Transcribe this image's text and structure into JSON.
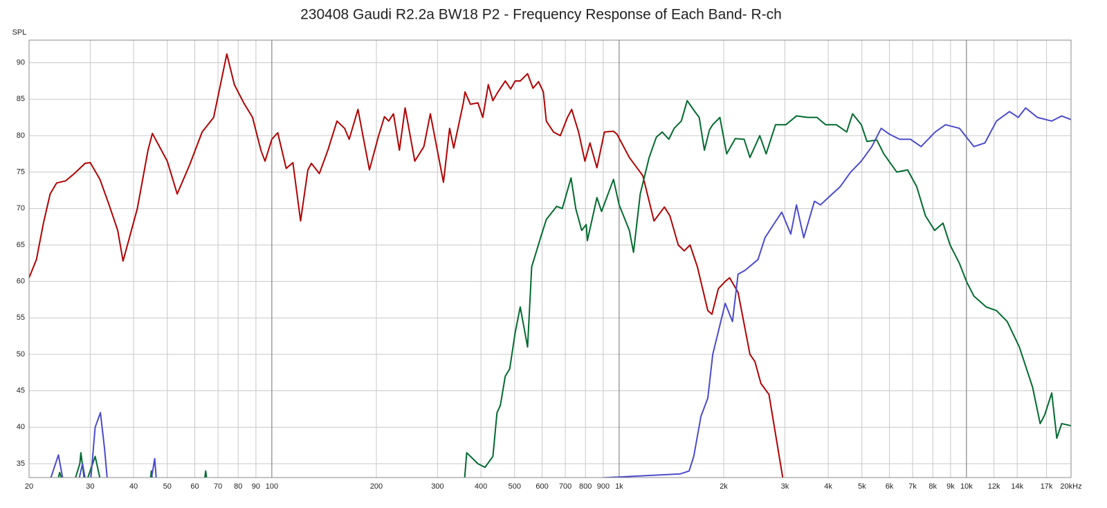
{
  "chart_data": {
    "type": "line",
    "title": "230408 Gaudi R2.2a BW18 P2 - Frequency Response of Each Band- R-ch",
    "y_label": "SPL",
    "xscale": "log",
    "grid": true,
    "xlim": [
      20,
      20000
    ],
    "ylim": [
      33.1,
      93.1
    ],
    "yticks": [
      35,
      40,
      45,
      50,
      55,
      60,
      65,
      70,
      75,
      80,
      85,
      90
    ],
    "xticks": [
      20,
      30,
      40,
      50,
      60,
      70,
      80,
      90,
      100,
      200,
      300,
      400,
      500,
      600,
      700,
      800,
      900,
      {
        "value": 1000,
        "label": "1k"
      },
      {
        "value": 2000,
        "label": "2k"
      },
      {
        "value": 3000,
        "label": "3k"
      },
      {
        "value": 4000,
        "label": "4k"
      },
      {
        "value": 5000,
        "label": "5k"
      },
      {
        "value": 6000,
        "label": "6k"
      },
      {
        "value": 7000,
        "label": "7k"
      },
      {
        "value": 8000,
        "label": "8k"
      },
      {
        "value": 9000,
        "label": "9k"
      },
      {
        "value": 10000,
        "label": "10k"
      },
      {
        "value": 20000,
        "label": "20kHz"
      }
    ],
    "xticks_faint": [
      {
        "value": 12000,
        "label": "12k"
      },
      {
        "value": 14000,
        "label": "14k"
      },
      {
        "value": 17000,
        "label": "17k"
      }
    ],
    "series": [
      {
        "color": "#b00000",
        "x": [
          20,
          21,
          22,
          23,
          24,
          25.5,
          27,
          29,
          30,
          32,
          34,
          36,
          37.3,
          41,
          44,
          45.3,
          50,
          53.4,
          58,
          63,
          68,
          74.2,
          78,
          83,
          88,
          93,
          95.6,
          100,
          104,
          110,
          115,
          121,
          127,
          130,
          137,
          145,
          154,
          162,
          167,
          177,
          191,
          203,
          211,
          217,
          224,
          233,
          242,
          258,
          274,
          286,
          312,
          325,
          334,
          356,
          360,
          373,
          392,
          405,
          420,
          433,
          448,
          470,
          487,
          502,
          519,
          545,
          565,
          586,
          605,
          617,
          647,
          677,
          710,
          730,
          764,
          797,
          824,
          863,
          907,
          963,
          986,
          1070,
          1170,
          1260,
          1350,
          1400,
          1480,
          1540,
          1600,
          1680,
          1800,
          1850,
          1930,
          2020,
          2080,
          2200,
          2380,
          2460,
          2560,
          2700,
          2960
        ],
        "values": [
          60.5,
          63,
          68,
          72,
          73.5,
          73.8,
          74.8,
          76.2,
          76.3,
          74,
          70.5,
          67,
          62.8,
          70,
          78,
          80.3,
          76.5,
          72,
          76,
          80.5,
          82.5,
          91.2,
          87,
          84.5,
          82.5,
          78,
          76.5,
          79.5,
          80.4,
          75.5,
          76.3,
          68.3,
          75.3,
          76.2,
          74.8,
          78,
          82,
          81,
          79.5,
          83.6,
          75.3,
          80,
          82.6,
          82,
          83,
          78,
          83.8,
          76.5,
          78.5,
          83,
          73.6,
          81,
          78.3,
          84.5,
          86,
          84.3,
          84.5,
          82.5,
          87,
          84.8,
          86,
          87.5,
          86.4,
          87.5,
          87.5,
          88.5,
          86.5,
          87.4,
          86,
          82,
          80.5,
          80,
          82.5,
          83.6,
          80.5,
          76.5,
          79,
          75.6,
          80.5,
          80.6,
          80.2,
          77,
          74.5,
          68.3,
          70.2,
          69,
          65,
          64.2,
          65,
          62,
          56,
          55.5,
          59,
          60,
          60.5,
          58.5,
          50,
          49,
          46,
          44.5,
          33
        ]
      },
      {
        "color": "#006a2e",
        "x": [
          24,
          24.5,
          26,
          28,
          28.2,
          29,
          31,
          32,
          33,
          44,
          45,
          46,
          63,
          64.5,
          66,
          359,
          364,
          392,
          411,
          433,
          445,
          455,
          470,
          484,
          502,
          519,
          545,
          560,
          594,
          617,
          661,
          686,
          727,
          750,
          780,
          804,
          810,
          863,
          890,
          963,
          1000,
          1070,
          1100,
          1150,
          1220,
          1280,
          1330,
          1390,
          1440,
          1510,
          1570,
          1640,
          1700,
          1760,
          1820,
          1860,
          1950,
          2040,
          2160,
          2290,
          2380,
          2540,
          2650,
          2820,
          3020,
          3240,
          3490,
          3710,
          3930,
          4220,
          4520,
          4700,
          4980,
          5170,
          5520,
          5780,
          6300,
          6770,
          7190,
          7620,
          8100,
          8560,
          8970,
          9540,
          10000,
          10500,
          11400,
          12200,
          13100,
          14200,
          15500,
          16300,
          16800,
          17600,
          18200,
          18800,
          20000
        ],
        "values": [
          32,
          33.8,
          30,
          35,
          36.5,
          32,
          36,
          33,
          30,
          30,
          34,
          30,
          30,
          34,
          30,
          33,
          36.5,
          35,
          34.5,
          36,
          42,
          43,
          47,
          48,
          53,
          56.5,
          51,
          62,
          66,
          68.5,
          70.3,
          70,
          74.2,
          70,
          67,
          67.8,
          65.6,
          71.5,
          69.6,
          74,
          70.5,
          67,
          64,
          72,
          77,
          79.8,
          80.5,
          79.5,
          81,
          82,
          84.8,
          83.5,
          82.5,
          78,
          80.8,
          81.5,
          82.5,
          77.5,
          79.6,
          79.5,
          77,
          80,
          77.5,
          81.5,
          81.5,
          82.7,
          82.5,
          82.5,
          81.5,
          81.5,
          80.5,
          83,
          81.5,
          79.2,
          79.4,
          77.5,
          75,
          75.3,
          73,
          69,
          67,
          68,
          65,
          62.5,
          60,
          58,
          56.5,
          56,
          54.5,
          51,
          45.5,
          40.5,
          41.7,
          44.7,
          38.5,
          40.5,
          40.2
        ]
      },
      {
        "color": "#4a4acc",
        "x": [
          22,
          24.3,
          25,
          27,
          28.5,
          29,
          30,
          31,
          32.1,
          33,
          34,
          44,
          46,
          47,
          1500,
          1590,
          1640,
          1720,
          1800,
          1860,
          1950,
          2020,
          2120,
          2200,
          2300,
          2510,
          2630,
          2800,
          2940,
          3120,
          3240,
          3400,
          3650,
          3800,
          4000,
          4330,
          4640,
          4980,
          5340,
          5680,
          6000,
          6420,
          6900,
          7400,
          8130,
          8700,
          9550,
          10500,
          11300,
          12200,
          13300,
          14100,
          14800,
          16000,
          17600,
          18800,
          20000
        ],
        "values": [
          30,
          36.2,
          33,
          30,
          35,
          33,
          32,
          40,
          42,
          37,
          30,
          30,
          35.7,
          30,
          33.6,
          34,
          36,
          41.5,
          44,
          50,
          54,
          57,
          54.5,
          61,
          61.5,
          63,
          66,
          68,
          69.5,
          66.5,
          70.5,
          66,
          71,
          70.5,
          71.5,
          73,
          75,
          76.5,
          78.5,
          81,
          80.2,
          79.5,
          79.5,
          78.5,
          80.5,
          81.5,
          81,
          78.5,
          79,
          82,
          83.3,
          82.5,
          83.8,
          82.5,
          82,
          82.7,
          82.2
        ]
      }
    ]
  }
}
